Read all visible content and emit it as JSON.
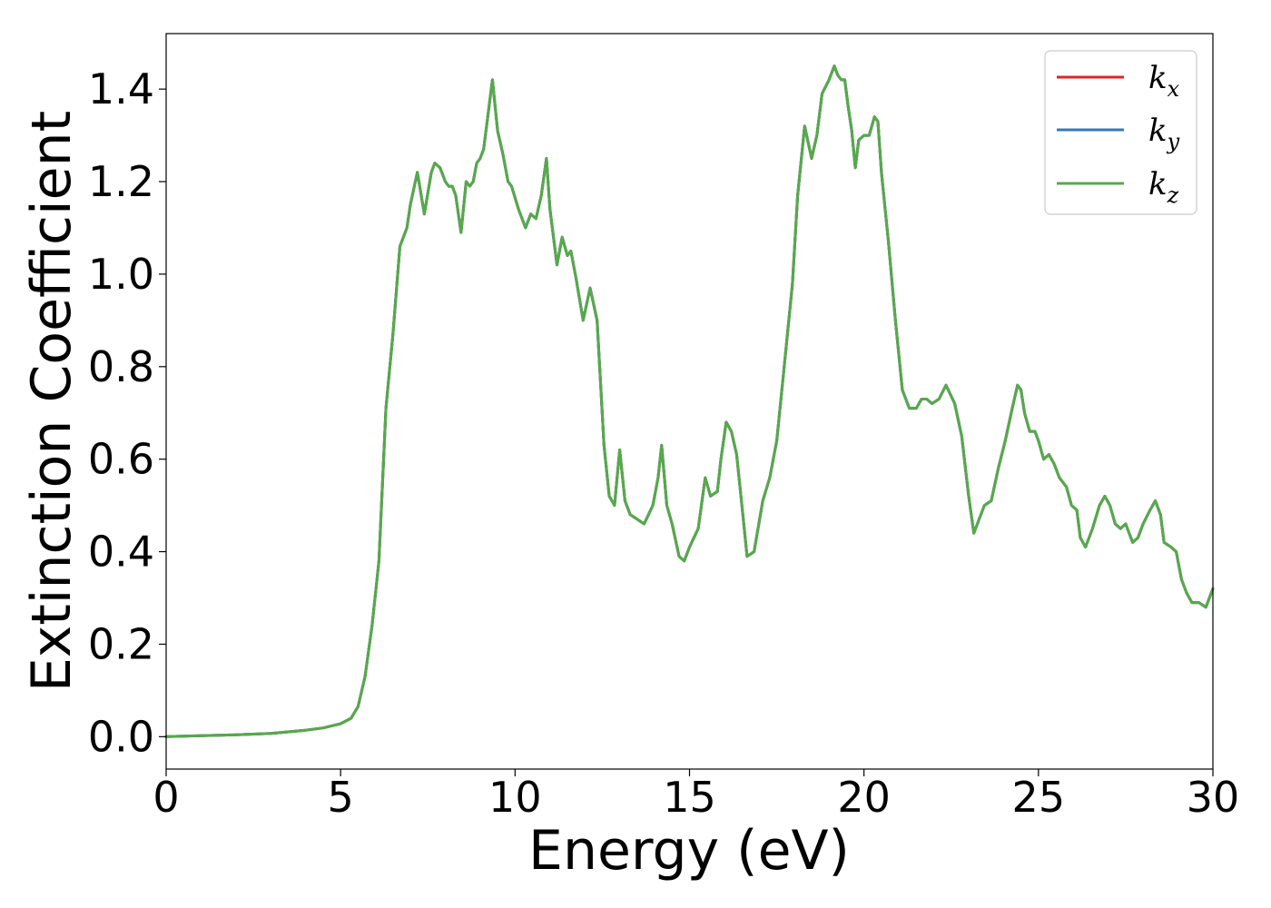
{
  "chart_data": {
    "type": "line",
    "xlabel": "Energy (eV)",
    "ylabel": "Extinction Coefficient",
    "xlim": [
      0,
      30
    ],
    "ylim": [
      -0.07,
      1.52
    ],
    "xticks": [
      0,
      5,
      10,
      15,
      20,
      25,
      30
    ],
    "xtick_labels": [
      "0",
      "5",
      "10",
      "15",
      "20",
      "25",
      "30"
    ],
    "yticks": [
      0.0,
      0.2,
      0.4,
      0.6,
      0.8,
      1.0,
      1.2,
      1.4
    ],
    "ytick_labels": [
      "0.0",
      "0.2",
      "0.4",
      "0.6",
      "0.8",
      "1.0",
      "1.2",
      "1.4"
    ],
    "grid": false,
    "legend_position": "top-right",
    "x": [
      0,
      1,
      2,
      3,
      4,
      4.5,
      5,
      5.3,
      5.5,
      5.7,
      5.9,
      6.1,
      6.3,
      6.5,
      6.7,
      6.9,
      7.0,
      7.2,
      7.4,
      7.6,
      7.7,
      7.85,
      8.0,
      8.1,
      8.2,
      8.3,
      8.45,
      8.6,
      8.7,
      8.8,
      8.9,
      9.0,
      9.1,
      9.2,
      9.35,
      9.5,
      9.65,
      9.8,
      9.9,
      10.1,
      10.3,
      10.45,
      10.6,
      10.75,
      10.9,
      11.0,
      11.2,
      11.35,
      11.5,
      11.6,
      11.75,
      11.95,
      12.15,
      12.35,
      12.55,
      12.7,
      12.85,
      13.0,
      13.15,
      13.3,
      13.5,
      13.7,
      13.95,
      14.1,
      14.2,
      14.35,
      14.5,
      14.7,
      14.85,
      15.0,
      15.25,
      15.45,
      15.6,
      15.8,
      15.9,
      16.05,
      16.2,
      16.35,
      16.5,
      16.65,
      16.85,
      17.1,
      17.3,
      17.5,
      17.7,
      17.95,
      18.1,
      18.3,
      18.5,
      18.65,
      18.8,
      19.0,
      19.15,
      19.25,
      19.35,
      19.45,
      19.55,
      19.65,
      19.75,
      19.85,
      20.0,
      20.15,
      20.3,
      20.4,
      20.5,
      20.7,
      20.9,
      21.1,
      21.3,
      21.5,
      21.65,
      21.8,
      21.95,
      22.15,
      22.35,
      22.6,
      22.8,
      23.0,
      23.15,
      23.3,
      23.45,
      23.65,
      23.85,
      24.05,
      24.25,
      24.4,
      24.5,
      24.6,
      24.75,
      24.9,
      25.0,
      25.15,
      25.3,
      25.45,
      25.6,
      25.8,
      25.95,
      26.1,
      26.2,
      26.35,
      26.55,
      26.75,
      26.9,
      27.05,
      27.2,
      27.35,
      27.5,
      27.7,
      27.85,
      28.0,
      28.2,
      28.35,
      28.5,
      28.6,
      28.8,
      28.95,
      29.1,
      29.25,
      29.4,
      29.6,
      29.8,
      30.0
    ],
    "series": [
      {
        "name": "k_x",
        "label_base": "k",
        "label_sub": "x",
        "color": "#d62728",
        "ref": 2
      },
      {
        "name": "k_y",
        "label_base": "k",
        "label_sub": "y",
        "color": "#3a78b5",
        "ref": 2
      },
      {
        "name": "k_z",
        "label_base": "k",
        "label_sub": "z",
        "color": "#55aa4a",
        "values": [
          0.0,
          0.002,
          0.004,
          0.007,
          0.014,
          0.019,
          0.028,
          0.04,
          0.065,
          0.13,
          0.24,
          0.38,
          0.71,
          0.87,
          1.06,
          1.1,
          1.15,
          1.22,
          1.13,
          1.22,
          1.24,
          1.23,
          1.2,
          1.19,
          1.19,
          1.17,
          1.09,
          1.2,
          1.19,
          1.2,
          1.24,
          1.25,
          1.27,
          1.33,
          1.42,
          1.31,
          1.26,
          1.2,
          1.19,
          1.14,
          1.1,
          1.13,
          1.12,
          1.17,
          1.25,
          1.14,
          1.02,
          1.08,
          1.04,
          1.05,
          0.99,
          0.9,
          0.97,
          0.9,
          0.63,
          0.52,
          0.5,
          0.62,
          0.51,
          0.48,
          0.47,
          0.46,
          0.5,
          0.56,
          0.63,
          0.5,
          0.46,
          0.39,
          0.38,
          0.41,
          0.45,
          0.56,
          0.52,
          0.53,
          0.6,
          0.68,
          0.66,
          0.61,
          0.5,
          0.39,
          0.4,
          0.51,
          0.56,
          0.64,
          0.79,
          0.98,
          1.17,
          1.32,
          1.25,
          1.3,
          1.39,
          1.42,
          1.45,
          1.43,
          1.42,
          1.42,
          1.36,
          1.31,
          1.23,
          1.29,
          1.3,
          1.3,
          1.34,
          1.33,
          1.22,
          1.07,
          0.9,
          0.75,
          0.71,
          0.71,
          0.73,
          0.73,
          0.72,
          0.73,
          0.76,
          0.72,
          0.65,
          0.52,
          0.44,
          0.47,
          0.5,
          0.51,
          0.58,
          0.64,
          0.71,
          0.76,
          0.75,
          0.7,
          0.66,
          0.66,
          0.64,
          0.6,
          0.61,
          0.59,
          0.56,
          0.54,
          0.5,
          0.49,
          0.43,
          0.41,
          0.45,
          0.5,
          0.52,
          0.5,
          0.46,
          0.45,
          0.46,
          0.42,
          0.43,
          0.46,
          0.49,
          0.51,
          0.48,
          0.42,
          0.41,
          0.4,
          0.34,
          0.31,
          0.29,
          0.29,
          0.28,
          0.32
        ]
      }
    ]
  }
}
